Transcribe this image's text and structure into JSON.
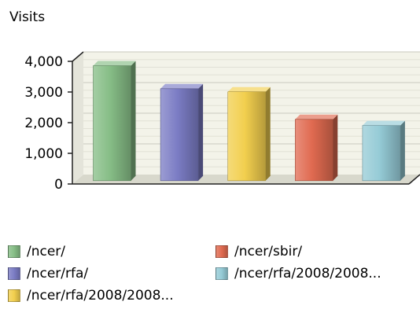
{
  "chart_data": {
    "type": "bar",
    "ylabel": "Visits",
    "ylim": [
      0,
      4000
    ],
    "yticks": [
      0,
      1000,
      2000,
      3000,
      4000
    ],
    "ytick_labels": [
      "0",
      "1,000",
      "2,000",
      "3,000",
      "4,000"
    ],
    "grid": true,
    "legend_position": "bottom",
    "categories": [
      "/ncer/",
      "/ncer/rfa/",
      "/ncer/rfa/2008/2008...",
      "/ncer/sbir/",
      "/ncer/rfa/2008/2008..."
    ],
    "values": [
      3750,
      3000,
      2900,
      2000,
      1800
    ],
    "colors": [
      "#86bd86",
      "#7b7cc4",
      "#f2cf4e",
      "#e06a50",
      "#95cbd6"
    ]
  },
  "legend": {
    "items": [
      {
        "label": "/ncer/",
        "color": "#86bd86"
      },
      {
        "label": "/ncer/rfa/",
        "color": "#7b7cc4"
      },
      {
        "label": "/ncer/rfa/2008/2008...",
        "color": "#f2cf4e"
      },
      {
        "label": "/ncer/sbir/",
        "color": "#e06a50"
      },
      {
        "label": "/ncer/rfa/2008/2008...",
        "color": "#95cbd6"
      }
    ]
  }
}
